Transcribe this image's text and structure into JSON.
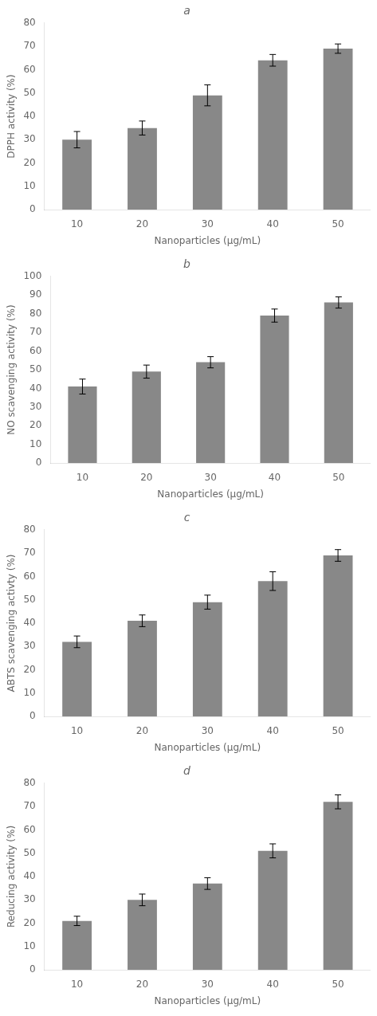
{
  "chart_data": [
    {
      "type": "bar",
      "title": "a",
      "xlabel": "Nanoparticles (μg/mL)",
      "ylabel": "DPPH activity (%)",
      "categories": [
        10,
        20,
        30,
        40,
        50
      ],
      "values": [
        30,
        35,
        49,
        64,
        69
      ],
      "errors": [
        3.5,
        3.0,
        4.5,
        2.5,
        2.0
      ],
      "color": "#888888",
      "ylim": [
        0,
        80
      ],
      "yticks": [
        0,
        10,
        20,
        30,
        40,
        50,
        60,
        70,
        80
      ],
      "grid": false
    },
    {
      "type": "bar",
      "title": "b",
      "xlabel": "Nanoparticles (μg/mL)",
      "ylabel": "NO scavenging activity (%)",
      "categories": [
        10,
        20,
        30,
        40,
        50
      ],
      "values": [
        41,
        49,
        54,
        79,
        86
      ],
      "errors": [
        4.0,
        3.5,
        3.0,
        3.5,
        3.0
      ],
      "color": "#888888",
      "ylim": [
        0,
        100
      ],
      "yticks": [
        0,
        10,
        20,
        30,
        40,
        50,
        60,
        70,
        80,
        90,
        100
      ],
      "grid": false
    },
    {
      "type": "bar",
      "title": "c",
      "xlabel": "Nanoparticles (μg/mL)",
      "ylabel": "ABTS scavenging activty (%)",
      "categories": [
        10,
        20,
        30,
        40,
        50
      ],
      "values": [
        32,
        41,
        49,
        58,
        69
      ],
      "errors": [
        2.5,
        2.5,
        3.0,
        4.0,
        2.5
      ],
      "color": "#888888",
      "ylim": [
        0,
        80
      ],
      "yticks": [
        0,
        10,
        20,
        30,
        40,
        50,
        60,
        70,
        80
      ],
      "grid": false
    },
    {
      "type": "bar",
      "title": "d",
      "xlabel": "Nanoparticles (μg/mL)",
      "ylabel": "Reducing activity (%)",
      "categories": [
        10,
        20,
        30,
        40,
        50
      ],
      "values": [
        21,
        30,
        37,
        51,
        72
      ],
      "errors": [
        2.0,
        2.5,
        2.5,
        3.0,
        3.0
      ],
      "color": "#888888",
      "ylim": [
        0,
        80
      ],
      "yticks": [
        0,
        10,
        20,
        30,
        40,
        50,
        60,
        70,
        80
      ],
      "grid": false
    }
  ]
}
